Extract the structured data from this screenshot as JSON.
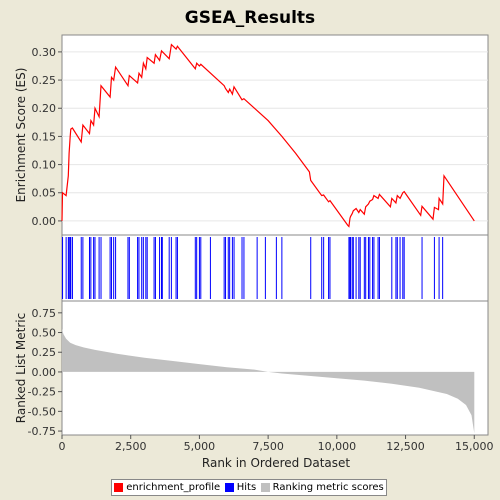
{
  "chart_data": {
    "type": "line",
    "title": "GSEA_Results",
    "xlabel": "Rank in Ordered Dataset",
    "xlim": [
      0,
      15500
    ],
    "x_ticks": [
      0,
      2500,
      5000,
      7500,
      10000,
      12500,
      15000
    ],
    "x_tick_labels": [
      "0",
      "2,500",
      "5,000",
      "7,500",
      "10,000",
      "12,500",
      "15,000"
    ],
    "es_panel": {
      "ylabel": "Enrichment Score (ES)",
      "ylim": [
        -0.025,
        0.33
      ],
      "y_ticks": [
        0.0,
        0.05,
        0.1,
        0.15,
        0.2,
        0.25,
        0.3
      ],
      "y_tick_labels": [
        "0.00",
        "0.05",
        "0.10",
        "0.15",
        "0.20",
        "0.25",
        "0.30"
      ],
      "color": "#ff0000",
      "series": [
        {
          "name": "enrichment_profile",
          "x": [
            0,
            20,
            150,
            230,
            260,
            300,
            320,
            380,
            700,
            760,
            1000,
            1050,
            1150,
            1200,
            1350,
            1420,
            1750,
            1800,
            1880,
            1950,
            2400,
            2450,
            2750,
            2800,
            2900,
            2960,
            3050,
            3100,
            3350,
            3400,
            3550,
            3620,
            3900,
            3980,
            4150,
            4200,
            4850,
            4900,
            5000,
            5050,
            5900,
            5950,
            6050,
            6100,
            6200,
            6260,
            6550,
            6620,
            7000,
            7500,
            8000,
            8500,
            9000,
            9050,
            9450,
            9520,
            9700,
            9750,
            10400,
            10440,
            10480,
            10500,
            10560,
            10600,
            10700,
            10800,
            10850,
            11000,
            11050,
            11150,
            11200,
            11300,
            11350,
            11500,
            11550,
            11950,
            12000,
            12150,
            12200,
            12300,
            12400,
            12450,
            13050,
            13100,
            13500,
            13550,
            13700,
            13720,
            13850,
            13900,
            15000
          ],
          "y": [
            0.0,
            0.05,
            0.045,
            0.08,
            0.12,
            0.15,
            0.163,
            0.165,
            0.14,
            0.17,
            0.155,
            0.178,
            0.17,
            0.2,
            0.185,
            0.24,
            0.22,
            0.255,
            0.25,
            0.273,
            0.24,
            0.258,
            0.245,
            0.262,
            0.255,
            0.28,
            0.27,
            0.29,
            0.28,
            0.295,
            0.285,
            0.302,
            0.288,
            0.313,
            0.305,
            0.31,
            0.27,
            0.28,
            0.275,
            0.278,
            0.24,
            0.235,
            0.228,
            0.234,
            0.225,
            0.238,
            0.215,
            0.217,
            0.2,
            0.178,
            0.15,
            0.12,
            0.087,
            0.072,
            0.045,
            0.046,
            0.034,
            0.036,
            -0.008,
            -0.01,
            0.005,
            0.008,
            0.013,
            0.018,
            0.022,
            0.015,
            0.02,
            0.012,
            0.025,
            0.03,
            0.035,
            0.038,
            0.045,
            0.04,
            0.047,
            0.025,
            0.04,
            0.032,
            0.045,
            0.04,
            0.05,
            0.052,
            0.01,
            0.026,
            0.003,
            0.024,
            0.02,
            0.04,
            0.03,
            0.08,
            0.0
          ]
        }
      ]
    },
    "hits_panel": {
      "color": "#0000ff",
      "hits": [
        20,
        150,
        230,
        260,
        300,
        320,
        380,
        700,
        760,
        1000,
        1050,
        1150,
        1200,
        1350,
        1420,
        1750,
        1800,
        1880,
        1950,
        2400,
        2450,
        2750,
        2800,
        2900,
        2960,
        3050,
        3100,
        3350,
        3400,
        3550,
        3620,
        3650,
        3900,
        3980,
        4150,
        4200,
        4850,
        4900,
        5000,
        5050,
        5400,
        5900,
        5950,
        6050,
        6100,
        6200,
        6260,
        6550,
        6620,
        7100,
        7400,
        7800,
        8000,
        9050,
        9450,
        9520,
        9700,
        9750,
        10440,
        10480,
        10500,
        10560,
        10600,
        10700,
        10800,
        10850,
        11000,
        11050,
        11150,
        11200,
        11300,
        11350,
        11500,
        11550,
        12000,
        12150,
        12200,
        12300,
        12400,
        12450,
        13100,
        13550,
        13720,
        13850
      ]
    },
    "metric_panel": {
      "ylabel": "Ranked List Metric",
      "ylim": [
        -0.8,
        0.9
      ],
      "y_ticks": [
        0.75,
        0.5,
        0.25,
        0.0,
        -0.25,
        -0.5,
        -0.75
      ],
      "y_tick_labels": [
        "0.75",
        "0.50",
        "0.25",
        "0.00",
        "-0.25",
        "-0.50",
        "-0.75"
      ],
      "color": "#c0c0c0",
      "x": [
        0,
        50,
        150,
        300,
        500,
        800,
        1200,
        2000,
        3000,
        4000,
        5000,
        6000,
        7000,
        7500,
        8000,
        9000,
        10000,
        11000,
        12000,
        13000,
        13500,
        14000,
        14400,
        14700,
        14900,
        15000
      ],
      "y": [
        0.55,
        0.48,
        0.42,
        0.37,
        0.34,
        0.31,
        0.28,
        0.23,
        0.18,
        0.14,
        0.1,
        0.06,
        0.03,
        0.0,
        -0.02,
        -0.05,
        -0.08,
        -0.11,
        -0.15,
        -0.2,
        -0.24,
        -0.28,
        -0.34,
        -0.42,
        -0.55,
        -0.78
      ]
    },
    "legend": {
      "position": "bottom",
      "items": [
        {
          "label": "enrichment_profile",
          "color": "#ff0000"
        },
        {
          "label": "Hits",
          "color": "#0000ff"
        },
        {
          "label": "Ranking metric scores",
          "color": "#c0c0c0"
        }
      ]
    }
  }
}
